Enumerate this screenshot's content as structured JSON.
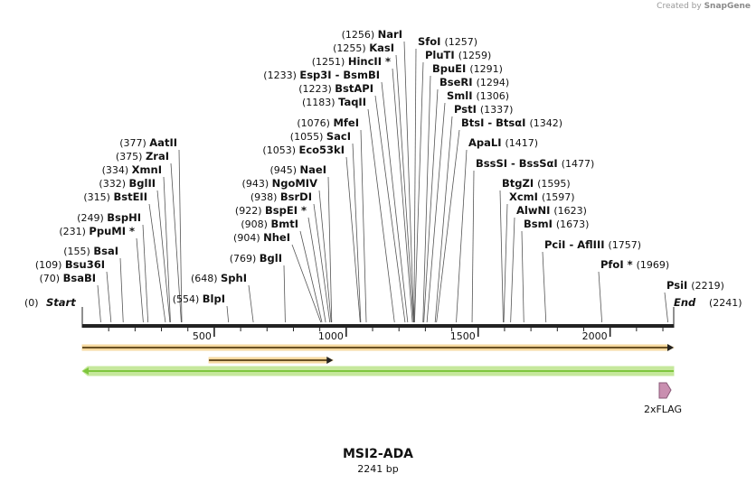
{
  "credit": {
    "prefix": "Created by",
    "brand": "SnapGene"
  },
  "title": "MSI2-ADA",
  "subtitle": "2241 bp",
  "total_bp": 2241,
  "ticks": [
    "500",
    "1000",
    "1500",
    "2000"
  ],
  "start": {
    "pos": "(0)",
    "name": "Start"
  },
  "end": {
    "pos": "(2241)",
    "name": "End"
  },
  "sites": [
    {
      "pos": "(1256)",
      "name": "NarI",
      "bp": 1256
    },
    {
      "pos": "(1255)",
      "name": "KasI",
      "bp": 1255
    },
    {
      "pos": "(1251)",
      "name": "HincII *",
      "bp": 1251
    },
    {
      "pos": "(1233)",
      "name": "Esp3I  -  BsmBI",
      "bp": 1233
    },
    {
      "pos": "(1223)",
      "name": "BstAPI",
      "bp": 1223
    },
    {
      "pos": "(1183)",
      "name": "TaqII",
      "bp": 1183
    },
    {
      "pos": "(1076)",
      "name": "MfeI",
      "bp": 1076
    },
    {
      "pos": "(1055)",
      "name": "SacI",
      "bp": 1055
    },
    {
      "pos": "(1053)",
      "name": "Eco53kI",
      "bp": 1053
    },
    {
      "pos": "(945)",
      "name": "NaeI",
      "bp": 945
    },
    {
      "pos": "(943)",
      "name": "NgoMIV",
      "bp": 943
    },
    {
      "pos": "(938)",
      "name": "BsrDI",
      "bp": 938
    },
    {
      "pos": "(922)",
      "name": "BspEI *",
      "bp": 922
    },
    {
      "pos": "(908)",
      "name": "BmtI",
      "bp": 908
    },
    {
      "pos": "(904)",
      "name": "NheI",
      "bp": 904
    },
    {
      "pos": "(769)",
      "name": "BglI",
      "bp": 769
    },
    {
      "pos": "(648)",
      "name": "SphI",
      "bp": 648
    },
    {
      "pos": "(554)",
      "name": "BlpI",
      "bp": 554
    },
    {
      "pos": "(377)",
      "name": "AatII",
      "bp": 377
    },
    {
      "pos": "(375)",
      "name": "ZraI",
      "bp": 375
    },
    {
      "pos": "(334)",
      "name": "XmnI",
      "bp": 334
    },
    {
      "pos": "(332)",
      "name": "BglII",
      "bp": 332
    },
    {
      "pos": "(315)",
      "name": "BstEII",
      "bp": 315
    },
    {
      "pos": "(249)",
      "name": "BspHI",
      "bp": 249
    },
    {
      "pos": "(231)",
      "name": "PpuMI *",
      "bp": 231
    },
    {
      "pos": "(155)",
      "name": "BsaI",
      "bp": 155
    },
    {
      "pos": "(109)",
      "name": "Bsu36I",
      "bp": 109
    },
    {
      "pos": "(70)",
      "name": "BsaBI",
      "bp": 70
    },
    {
      "pos": "(1257)",
      "name": "SfoI",
      "bp": 1257
    },
    {
      "pos": "(1259)",
      "name": "PluTI",
      "bp": 1259
    },
    {
      "pos": "(1291)",
      "name": "BpuEI",
      "bp": 1291
    },
    {
      "pos": "(1294)",
      "name": "BseRI",
      "bp": 1294
    },
    {
      "pos": "(1306)",
      "name": "SmlI",
      "bp": 1306
    },
    {
      "pos": "(1337)",
      "name": "PstI",
      "bp": 1337
    },
    {
      "pos": "(1342)",
      "name": "BtsI  -  BtsαI",
      "bp": 1342
    },
    {
      "pos": "(1417)",
      "name": "ApaLI",
      "bp": 1417
    },
    {
      "pos": "(1477)",
      "name": "BssSI  -  BssSαI",
      "bp": 1477
    },
    {
      "pos": "(1595)",
      "name": "BtgZI",
      "bp": 1595
    },
    {
      "pos": "(1597)",
      "name": "XcmI",
      "bp": 1597
    },
    {
      "pos": "(1623)",
      "name": "AlwNI",
      "bp": 1623
    },
    {
      "pos": "(1673)",
      "name": "BsmI",
      "bp": 1673
    },
    {
      "pos": "(1757)",
      "name": "PciI  -  AflIII",
      "bp": 1757
    },
    {
      "pos": "(1969)",
      "name": "PfoI *",
      "bp": 1969
    },
    {
      "pos": "(2219)",
      "name": "PsiI",
      "bp": 2219
    }
  ],
  "features": [
    {
      "name": "orange-long",
      "from": 0,
      "to": 2241,
      "color": "#e2a02a",
      "fill": "#f6d9a0"
    },
    {
      "name": "orange-short",
      "from": 480,
      "to": 950,
      "color": "#e2a02a",
      "fill": "#f6d9a0"
    },
    {
      "name": "green",
      "from": 0,
      "to": 2241,
      "color": "#7fc63e",
      "fill": "#c6e89c"
    }
  ],
  "flag": {
    "label": "2xFLAG",
    "color": "#c98fb0"
  }
}
